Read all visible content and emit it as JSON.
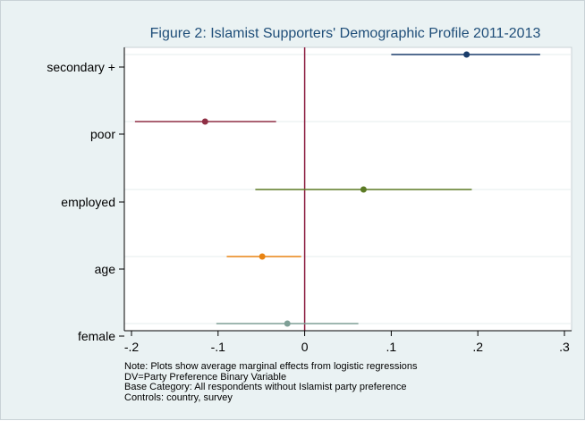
{
  "chart_data": {
    "type": "dot_errorbar",
    "title": "Figure 2: Islamist Supporters' Demographic Profile 2011-2013",
    "xlabel": "",
    "ylabel": "",
    "xlim": [
      -0.2,
      0.3
    ],
    "xticks": [
      -0.2,
      -0.1,
      0,
      0.1,
      0.2,
      0.3
    ],
    "xtick_labels": [
      "-.2",
      "-.1",
      "0",
      ".1",
      ".2",
      ".3"
    ],
    "reference_line": 0,
    "grid": "horizontal",
    "series": [
      {
        "category": "secondary +",
        "estimate": 0.187,
        "ci_low": 0.1,
        "ci_high": 0.272,
        "color": "#1a3d6b"
      },
      {
        "category": "poor",
        "estimate": -0.115,
        "ci_low": -0.196,
        "ci_high": -0.033,
        "color": "#8f2f45"
      },
      {
        "category": "employed",
        "estimate": 0.068,
        "ci_low": -0.057,
        "ci_high": 0.193,
        "color": "#5b7a24"
      },
      {
        "category": "age",
        "estimate": -0.049,
        "ci_low": -0.09,
        "ci_high": -0.004,
        "color": "#e88312"
      },
      {
        "category": "female",
        "estimate": -0.02,
        "ci_low": -0.102,
        "ci_high": 0.062,
        "color": "#7e9f96"
      }
    ],
    "notes": [
      "Note: Plots show average marginal effects from logistic regressions",
      "DV=Party Preference Binary Variable",
      "Base Category: All respondents without Islamist party preference",
      "Controls: country, survey"
    ]
  },
  "colors": {
    "reference_line": "#8c1d40",
    "plot_background": "#ffffff",
    "outer_background": "#eaf2f3",
    "title": "#1f4e79"
  }
}
